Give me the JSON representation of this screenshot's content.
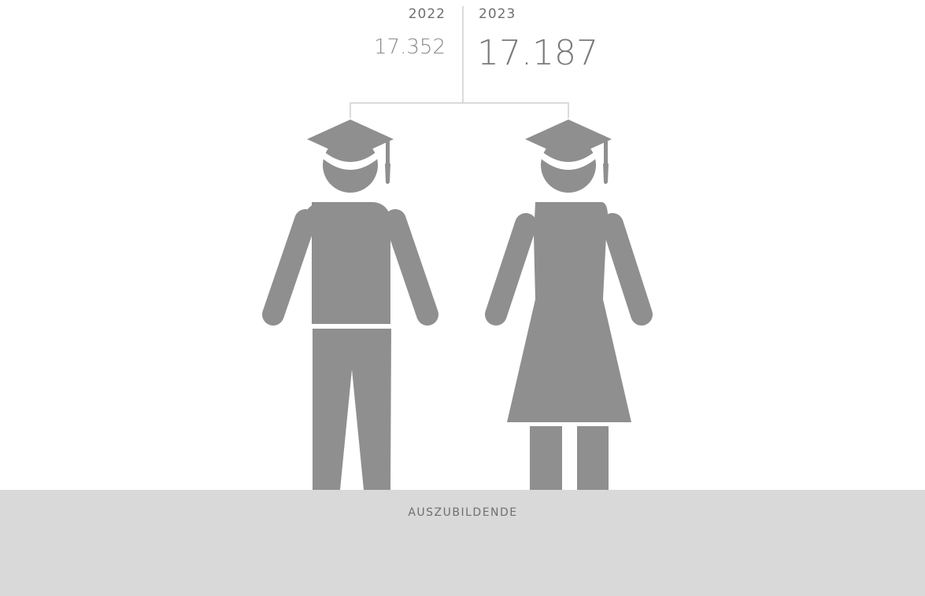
{
  "comparison": {
    "previous": {
      "year": "2022",
      "value": "17.352"
    },
    "current": {
      "year": "2023",
      "value": "17.187"
    }
  },
  "label": "AUSZUBILDENDE"
}
